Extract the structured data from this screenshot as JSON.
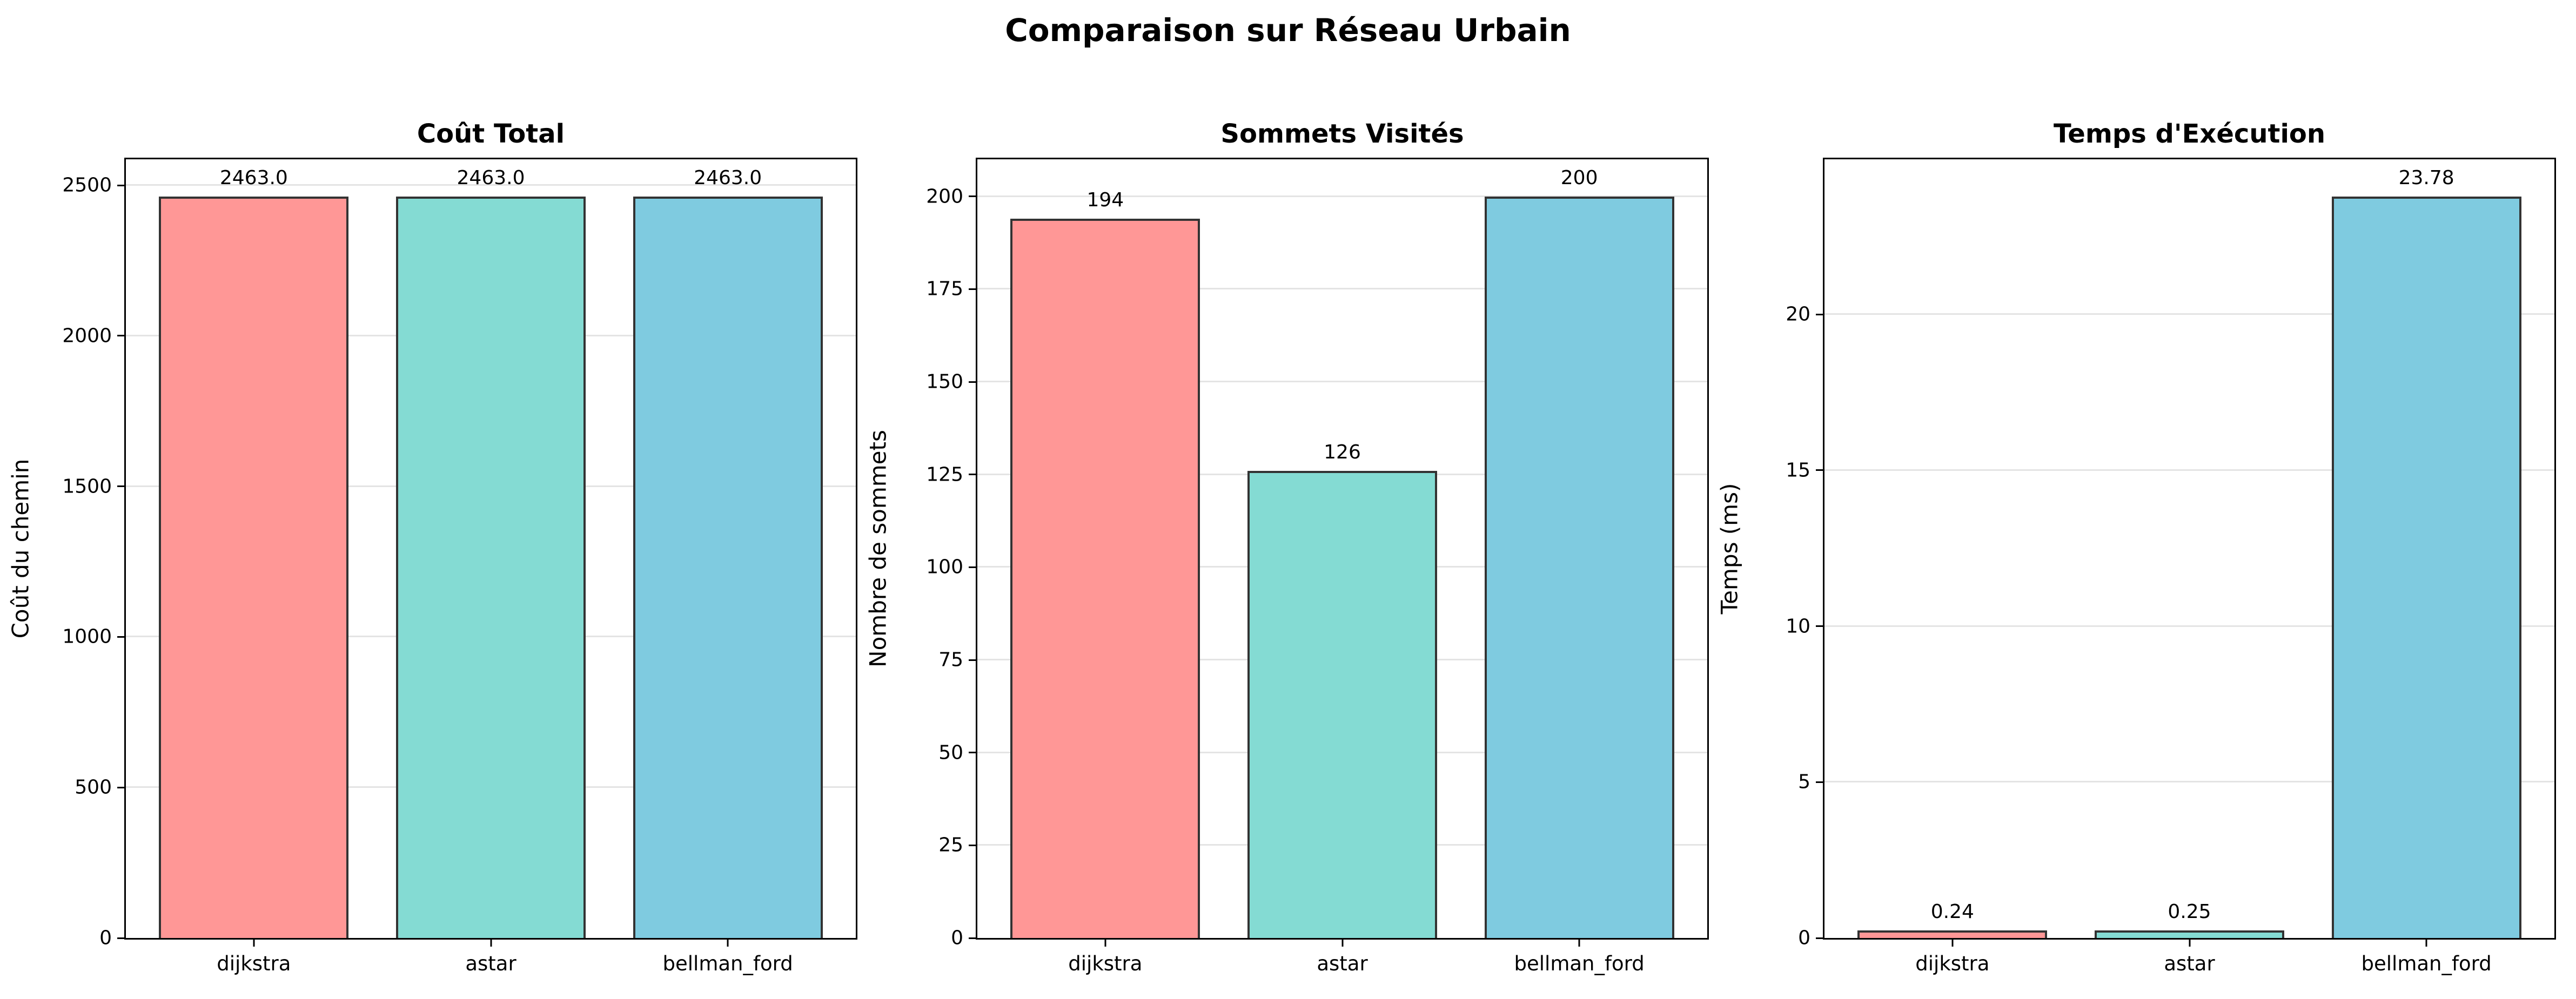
{
  "figure_title": "Comparaison sur Réseau Urbain",
  "style": {
    "bar_colors": [
      "#FF9796",
      "#84DBD3",
      "#7FCBE0"
    ],
    "bar_edge_color": "#333333",
    "grid_color": "#E4E4E4",
    "axis_color": "#000000",
    "background": "#FFFFFF"
  },
  "chart_data": [
    {
      "type": "bar",
      "title": "Coût Total",
      "ylabel": "Coût du chemin",
      "xlabel": "",
      "categories": [
        "dijkstra",
        "astar",
        "bellman_ford"
      ],
      "values": [
        2463.0,
        2463.0,
        2463.0
      ],
      "value_labels": [
        "2463.0",
        "2463.0",
        "2463.0"
      ],
      "yticks": [
        0,
        500,
        1000,
        1500,
        2000,
        2500
      ],
      "ytick_labels": [
        "0",
        "500",
        "1000",
        "1500",
        "2000",
        "2500"
      ],
      "ylim": [
        0,
        2586.15
      ],
      "grid": true,
      "legend": null
    },
    {
      "type": "bar",
      "title": "Sommets Visités",
      "ylabel": "Nombre de sommets",
      "xlabel": "",
      "categories": [
        "dijkstra",
        "astar",
        "bellman_ford"
      ],
      "values": [
        194,
        126,
        200
      ],
      "value_labels": [
        "194",
        "126",
        "200"
      ],
      "yticks": [
        0,
        25,
        50,
        75,
        100,
        125,
        150,
        175,
        200
      ],
      "ytick_labels": [
        "0",
        "25",
        "50",
        "75",
        "100",
        "125",
        "150",
        "175",
        "200"
      ],
      "ylim": [
        0,
        210
      ],
      "grid": true,
      "legend": null
    },
    {
      "type": "bar",
      "title": "Temps d'Exécution",
      "ylabel": "Temps (ms)",
      "xlabel": "",
      "categories": [
        "dijkstra",
        "astar",
        "bellman_ford"
      ],
      "values": [
        0.24,
        0.25,
        23.78
      ],
      "value_labels": [
        "0.24",
        "0.25",
        "23.78"
      ],
      "yticks": [
        0,
        5,
        10,
        15,
        20
      ],
      "ytick_labels": [
        "0",
        "5",
        "10",
        "15",
        "20"
      ],
      "ylim": [
        0,
        24.97
      ],
      "grid": true,
      "legend": null
    }
  ]
}
